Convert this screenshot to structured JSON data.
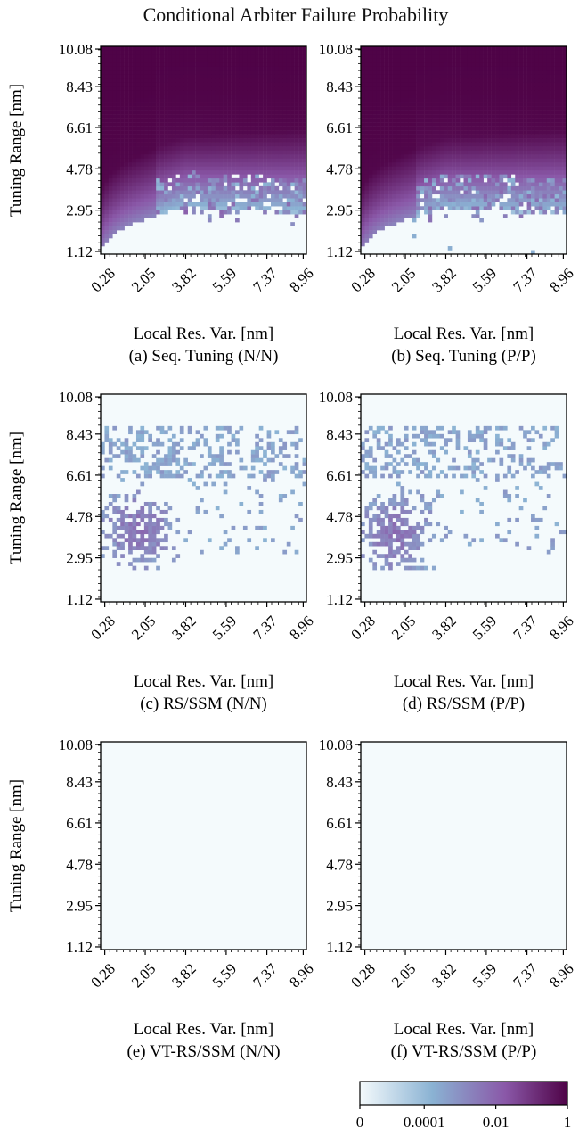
{
  "figure": {
    "title": "Conditional Arbiter Failure Probability",
    "colormap": [
      "#f4fafc",
      "#8ab2d3",
      "#8a58a8",
      "#4f0347"
    ]
  },
  "chart_data": [
    {
      "type": "heatmap",
      "panel": "a",
      "caption": "(a) Seq. Tuning (N/N)",
      "xlabel": "Local Res. Var. [nm]",
      "ylabel": "Tuning Range [nm]",
      "xticks": [
        "0.28",
        "2.05",
        "3.82",
        "5.59",
        "7.37",
        "8.96"
      ],
      "yticks": [
        "1.12",
        "2.95",
        "4.78",
        "6.61",
        "8.43",
        "10.08"
      ],
      "xlim": [
        0.1,
        9.1
      ],
      "ylim": [
        1.0,
        10.2
      ],
      "pattern": "diagonal-high",
      "failure_boundary": {
        "at_x_0.28": 1.3,
        "at_x_3.82": 3.05,
        "at_x_8.96": 2.75
      },
      "prob_range": [
        0,
        1
      ]
    },
    {
      "type": "heatmap",
      "panel": "b",
      "caption": "(b) Seq. Tuning (P/P)",
      "xlabel": "Local Res. Var. [nm]",
      "ylabel": "",
      "xticks": [
        "0.28",
        "2.05",
        "3.82",
        "5.59",
        "7.37",
        "8.96"
      ],
      "yticks": [
        "1.12",
        "2.95",
        "4.78",
        "6.61",
        "8.43",
        "10.08"
      ],
      "xlim": [
        0.1,
        9.1
      ],
      "ylim": [
        1.0,
        10.2
      ],
      "pattern": "diagonal-high",
      "failure_boundary": {
        "at_x_0.28": 1.3,
        "at_x_3.82": 3.0,
        "at_x_8.96": 2.75
      },
      "prob_range": [
        0,
        1
      ]
    },
    {
      "type": "heatmap",
      "panel": "c",
      "caption": "(c) RS/SSM (N/N)",
      "xlabel": "Local Res. Var. [nm]",
      "ylabel": "Tuning Range [nm]",
      "xticks": [
        "0.28",
        "2.05",
        "3.82",
        "5.59",
        "7.37",
        "8.96"
      ],
      "yticks": [
        "1.12",
        "2.95",
        "4.78",
        "6.61",
        "8.43",
        "10.08"
      ],
      "xlim": [
        0.1,
        9.1
      ],
      "ylim": [
        1.0,
        10.2
      ],
      "pattern": "sparse-scatter",
      "cluster": {
        "x": 1.7,
        "y": 4.2
      },
      "band_y": [
        6.5,
        8.7
      ],
      "prob_range": [
        0,
        0.001
      ]
    },
    {
      "type": "heatmap",
      "panel": "d",
      "caption": "(d) RS/SSM (P/P)",
      "xlabel": "Local Res. Var. [nm]",
      "ylabel": "",
      "xticks": [
        "0.28",
        "2.05",
        "3.82",
        "5.59",
        "7.37",
        "8.96"
      ],
      "yticks": [
        "1.12",
        "2.95",
        "4.78",
        "6.61",
        "8.43",
        "10.08"
      ],
      "xlim": [
        0.1,
        9.1
      ],
      "ylim": [
        1.0,
        10.2
      ],
      "pattern": "sparse-scatter",
      "cluster": {
        "x": 1.6,
        "y": 4.0
      },
      "band_y": [
        6.5,
        8.7
      ],
      "prob_range": [
        0,
        0.001
      ]
    },
    {
      "type": "heatmap",
      "panel": "e",
      "caption": "(e) VT-RS/SSM (N/N)",
      "xlabel": "Local Res. Var. [nm]",
      "ylabel": "Tuning Range [nm]",
      "xticks": [
        "0.28",
        "2.05",
        "3.82",
        "5.59",
        "7.37",
        "8.96"
      ],
      "yticks": [
        "1.12",
        "2.95",
        "4.78",
        "6.61",
        "8.43",
        "10.08"
      ],
      "xlim": [
        0.1,
        9.1
      ],
      "ylim": [
        1.0,
        10.2
      ],
      "pattern": "empty",
      "prob_range": [
        0,
        0
      ]
    },
    {
      "type": "heatmap",
      "panel": "f",
      "caption": "(f) VT-RS/SSM (P/P)",
      "xlabel": "Local Res. Var. [nm]",
      "ylabel": "",
      "xticks": [
        "0.28",
        "2.05",
        "3.82",
        "5.59",
        "7.37",
        "8.96"
      ],
      "yticks": [
        "1.12",
        "2.95",
        "4.78",
        "6.61",
        "8.43",
        "10.08"
      ],
      "xlim": [
        0.1,
        9.1
      ],
      "ylim": [
        1.0,
        10.2
      ],
      "pattern": "empty",
      "prob_range": [
        0,
        0
      ]
    }
  ],
  "colorbar": {
    "ticks": [
      "0",
      "0.0001",
      "0.01",
      "1"
    ],
    "tick_values": [
      0,
      0.0001,
      0.01,
      1
    ]
  }
}
